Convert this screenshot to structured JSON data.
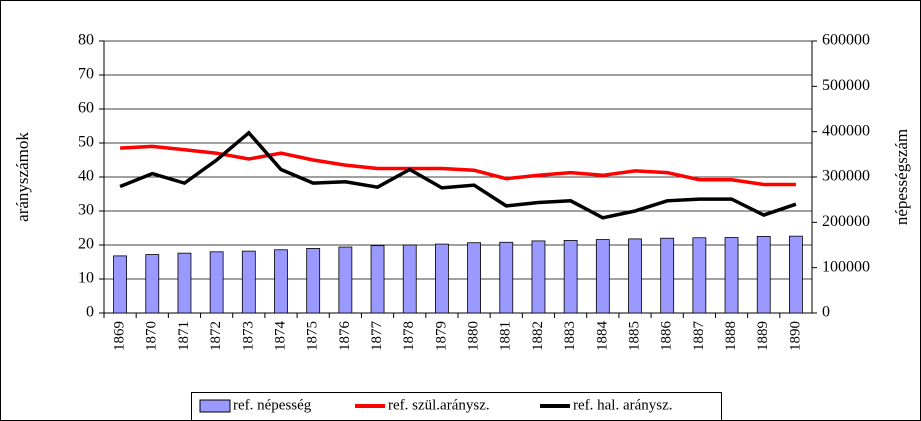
{
  "chart_data": {
    "type": "bar-line",
    "y_label": "arányszámok",
    "y2_label": "népességszám",
    "categories": [
      "1869",
      "1870",
      "1871",
      "1872",
      "1873",
      "1874",
      "1875",
      "1876",
      "1877",
      "1878",
      "1879",
      "1880",
      "1881",
      "1882",
      "1883",
      "1884",
      "1885",
      "1886",
      "1887",
      "1888",
      "1889",
      "1890"
    ],
    "series": [
      {
        "name": "ref. népesség",
        "type": "bar",
        "axis": "y2",
        "color": "#9999ff",
        "values": [
          126000,
          129000,
          132000,
          135000,
          136500,
          139500,
          142500,
          145500,
          148500,
          150000,
          152000,
          155000,
          156000,
          159000,
          160000,
          162000,
          163500,
          165000,
          166000,
          166500,
          169000,
          169500
        ]
      },
      {
        "name": "ref. szül.aránysz.",
        "type": "line",
        "color": "#ff0000",
        "values": [
          48.5,
          49,
          48,
          47,
          45.3,
          47,
          45,
          43.5,
          42.5,
          42.5,
          42.5,
          42,
          39.5,
          40.5,
          41.3,
          40.5,
          41.8,
          41.3,
          39.2,
          39.2,
          37.8,
          37.8
        ]
      },
      {
        "name": "ref. hal. aránysz.",
        "type": "line",
        "color": "#000000",
        "values": [
          37.2,
          41,
          38.2,
          45,
          53,
          42.2,
          38.2,
          38.6,
          37,
          42.2,
          36.8,
          37.6,
          31.5,
          32.5,
          33,
          28,
          30,
          33,
          33.5,
          33.5,
          28.8,
          32
        ]
      }
    ],
    "ylim": [
      0,
      80
    ],
    "yticks": [
      0,
      10,
      20,
      30,
      40,
      50,
      60,
      70,
      80
    ],
    "y2lim": [
      0,
      600000
    ],
    "y2ticks": [
      0,
      100000,
      200000,
      300000,
      400000,
      500000,
      600000
    ],
    "grid": true,
    "legend": "bottom"
  }
}
